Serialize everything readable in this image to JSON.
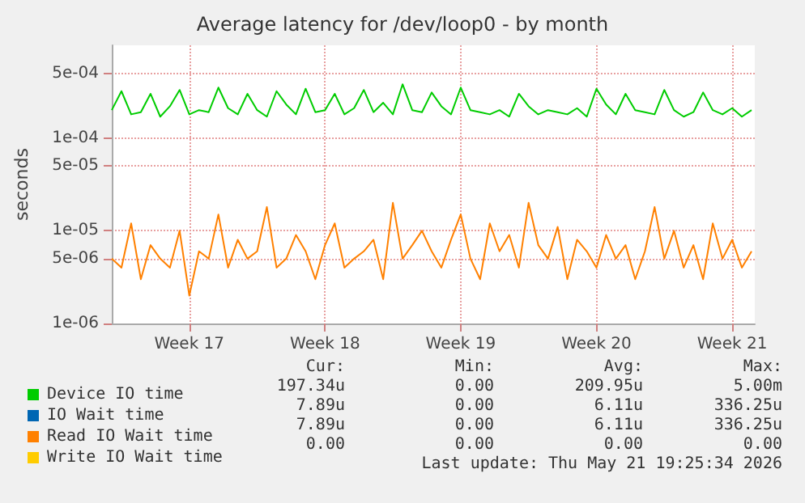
{
  "chart_data": {
    "type": "line",
    "title": "Average latency for /dev/loop0 - by month",
    "ylabel": "seconds",
    "x": [
      "2026-04-19T12:00",
      "2026-04-20T00:00",
      "2026-04-20T12:00",
      "2026-04-21T00:00",
      "2026-04-21T12:00",
      "2026-04-22T00:00",
      "2026-04-22T12:00",
      "2026-04-23T00:00",
      "2026-04-23T12:00",
      "2026-04-24T00:00",
      "2026-04-24T12:00",
      "2026-04-25T00:00",
      "2026-04-25T12:00",
      "2026-04-26T00:00",
      "2026-04-26T12:00",
      "2026-04-27T00:00",
      "2026-04-27T12:00",
      "2026-04-28T00:00",
      "2026-04-28T12:00",
      "2026-04-29T00:00",
      "2026-04-29T12:00",
      "2026-04-30T00:00",
      "2026-04-30T12:00",
      "2026-05-01T00:00",
      "2026-05-01T12:00",
      "2026-05-02T00:00",
      "2026-05-02T12:00",
      "2026-05-03T00:00",
      "2026-05-03T12:00",
      "2026-05-04T00:00",
      "2026-05-04T12:00",
      "2026-05-05T00:00",
      "2026-05-05T12:00",
      "2026-05-06T00:00",
      "2026-05-06T12:00",
      "2026-05-07T00:00",
      "2026-05-07T12:00",
      "2026-05-08T00:00",
      "2026-05-08T12:00",
      "2026-05-09T00:00",
      "2026-05-09T12:00",
      "2026-05-10T00:00",
      "2026-05-10T12:00",
      "2026-05-11T00:00",
      "2026-05-11T12:00",
      "2026-05-12T00:00",
      "2026-05-12T12:00",
      "2026-05-13T00:00",
      "2026-05-13T12:00",
      "2026-05-14T00:00",
      "2026-05-14T12:00",
      "2026-05-15T00:00",
      "2026-05-15T12:00",
      "2026-05-16T00:00",
      "2026-05-16T12:00",
      "2026-05-17T00:00",
      "2026-05-17T12:00",
      "2026-05-18T00:00",
      "2026-05-18T12:00",
      "2026-05-19T00:00",
      "2026-05-19T12:00",
      "2026-05-20T00:00",
      "2026-05-20T12:00",
      "2026-05-21T00:00",
      "2026-05-21T12:00",
      "2026-05-22T00:00",
      "2026-05-22T12:00"
    ],
    "series": [
      {
        "name": "Device IO time",
        "color": "#00cc00",
        "values": [
          0.0002,
          0.00032,
          0.00018,
          0.00019,
          0.0003,
          0.00017,
          0.00022,
          0.00033,
          0.00018,
          0.0002,
          0.00019,
          0.00035,
          0.00021,
          0.00018,
          0.0003,
          0.0002,
          0.00017,
          0.00032,
          0.00023,
          0.00018,
          0.00034,
          0.00019,
          0.0002,
          0.0003,
          0.00018,
          0.00021,
          0.00033,
          0.00019,
          0.00024,
          0.00018,
          0.00038,
          0.0002,
          0.00019,
          0.00031,
          0.00022,
          0.00018,
          0.00035,
          0.0002,
          0.00019,
          0.00018,
          0.0002,
          0.00017,
          0.0003,
          0.00022,
          0.00018,
          0.0002,
          0.00019,
          0.00018,
          0.00021,
          0.00017,
          0.00034,
          0.00023,
          0.00018,
          0.0003,
          0.0002,
          0.00019,
          0.00018,
          0.00033,
          0.0002,
          0.00017,
          0.00019,
          0.00031,
          0.0002,
          0.00018,
          0.00021,
          0.00017,
          0.0002
        ]
      },
      {
        "name": "IO Wait time",
        "color": "#0066b3",
        "values": [
          null,
          null,
          null,
          null,
          null,
          null,
          null,
          null,
          null,
          null,
          null,
          null,
          null,
          null,
          null,
          null,
          null,
          null,
          null,
          null,
          null,
          null,
          null,
          null,
          null,
          null,
          null,
          null,
          null,
          null,
          null,
          null,
          null,
          null,
          null,
          null,
          null,
          null,
          null,
          null,
          null,
          null,
          null,
          null,
          null,
          null,
          null,
          null,
          null,
          null,
          null,
          null,
          null,
          null,
          null,
          null,
          null,
          null,
          null,
          null,
          null,
          null,
          null,
          null,
          null,
          null,
          null
        ]
      },
      {
        "name": "Read IO Wait time",
        "color": "#ff8000",
        "values": [
          5e-06,
          4e-06,
          1.2e-05,
          3e-06,
          7e-06,
          5e-06,
          4e-06,
          1e-05,
          2e-06,
          6e-06,
          5e-06,
          1.5e-05,
          4e-06,
          8e-06,
          5e-06,
          6e-06,
          1.8e-05,
          4e-06,
          5e-06,
          9e-06,
          6e-06,
          3e-06,
          7e-06,
          1.2e-05,
          4e-06,
          5e-06,
          6e-06,
          8e-06,
          3e-06,
          2e-05,
          5e-06,
          7e-06,
          1e-05,
          6e-06,
          4e-06,
          8e-06,
          1.5e-05,
          5e-06,
          3e-06,
          1.2e-05,
          6e-06,
          9e-06,
          4e-06,
          2e-05,
          7e-06,
          5e-06,
          1.1e-05,
          3e-06,
          8e-06,
          6e-06,
          4e-06,
          9e-06,
          5e-06,
          7e-06,
          3e-06,
          6e-06,
          1.8e-05,
          5e-06,
          1e-05,
          4e-06,
          7e-06,
          3e-06,
          1.2e-05,
          5e-06,
          8e-06,
          4e-06,
          6e-06
        ]
      },
      {
        "name": "Write IO Wait time",
        "color": "#ffcc00",
        "values": [
          null,
          null,
          null,
          null,
          null,
          null,
          null,
          null,
          null,
          null,
          null,
          null,
          null,
          null,
          null,
          null,
          null,
          null,
          null,
          null,
          null,
          null,
          null,
          null,
          null,
          null,
          null,
          null,
          null,
          null,
          null,
          null,
          null,
          null,
          null,
          null,
          null,
          null,
          null,
          null,
          null,
          null,
          null,
          null,
          null,
          null,
          null,
          null,
          null,
          null,
          null,
          null,
          null,
          null,
          null,
          null,
          null,
          null,
          null,
          null,
          null,
          null,
          null,
          null,
          null,
          null,
          null
        ]
      }
    ],
    "log": "y",
    "xlim": [
      "2026-04-19T12:00",
      "2026-05-22T16:00"
    ],
    "xticks": [
      {
        "value": "2026-04-23T12:00",
        "label": "Week 17"
      },
      {
        "value": "2026-04-30T12:00",
        "label": "Week 18"
      },
      {
        "value": "2026-05-07T12:00",
        "label": "Week 19"
      },
      {
        "value": "2026-05-14T12:00",
        "label": "Week 20"
      },
      {
        "value": "2026-05-21T12:00",
        "label": "Week 21"
      }
    ],
    "ylim": [
      1e-06,
      0.001
    ],
    "yticks": [
      {
        "value": 1e-06,
        "label": "1e-06"
      },
      {
        "value": 5e-06,
        "label": "5e-06"
      },
      {
        "value": 1e-05,
        "label": "1e-05"
      },
      {
        "value": 5e-05,
        "label": "5e-05"
      },
      {
        "value": 0.0001,
        "label": "1e-04"
      },
      {
        "value": 0.0005,
        "label": "5e-04"
      }
    ],
    "grid": true,
    "legend": "bottom",
    "marker": "none",
    "line_style": "solid",
    "annotations": [
      "Cur:",
      "Min:",
      "Avg:",
      "Max:",
      "197.34u",
      "0.00",
      "209.95u",
      "5.00m",
      "7.89u",
      "0.00",
      "6.11u",
      "336.25u",
      "7.89u",
      "0.00",
      "6.11u",
      "336.25u",
      "0.00",
      "0.00",
      "0.00",
      "0.00",
      "Last update: Thu May 21 19:25:34 2026"
    ]
  }
}
